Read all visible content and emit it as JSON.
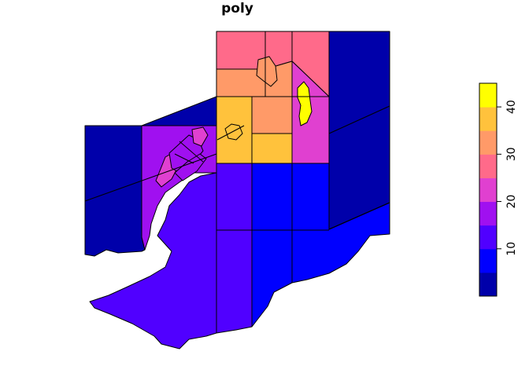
{
  "title": "poly",
  "palette": {
    "c1": "#0000AA",
    "c2": "#0000FF",
    "c3": "#5000FF",
    "c4": "#A010F0",
    "c5": "#E040D0",
    "c6": "#FF6A8A",
    "c7": "#FF9A68",
    "c8": "#FFC23C",
    "c9": "#FFFF00"
  },
  "legend": {
    "range": [
      0,
      45
    ],
    "ticks": [
      "10",
      "20",
      "30",
      "40"
    ],
    "tick_values": [
      10,
      20,
      30,
      40
    ],
    "color_order": [
      "c1",
      "c2",
      "c3",
      "c4",
      "c5",
      "c6",
      "c7",
      "c8",
      "c9"
    ]
  }
}
